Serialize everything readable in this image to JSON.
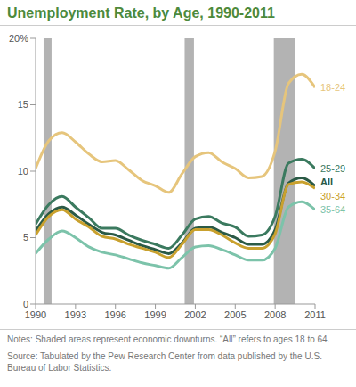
{
  "chart_data": {
    "type": "line",
    "title": "Unemployment Rate, by Age, 1990-2011",
    "x": [
      1990,
      1991,
      1992,
      1993,
      1994,
      1995,
      1996,
      1997,
      1998,
      1999,
      2000,
      2001,
      2002,
      2003,
      2004,
      2005,
      2006,
      2007,
      2008,
      2009,
      2010,
      2011
    ],
    "series": [
      {
        "name": "18-24",
        "color": "#e6c57c",
        "values": [
          10.2,
          12.3,
          12.9,
          12.2,
          11.3,
          10.7,
          10.8,
          10.1,
          9.3,
          8.9,
          8.4,
          9.8,
          11.1,
          11.4,
          10.7,
          10.2,
          9.5,
          9.6,
          11.5,
          16.6,
          17.3,
          16.3
        ]
      },
      {
        "name": "25-29",
        "color": "#3b7a5f",
        "values": [
          6.0,
          7.5,
          8.1,
          7.3,
          6.5,
          5.7,
          5.7,
          5.2,
          4.8,
          4.5,
          4.2,
          5.2,
          6.4,
          6.6,
          6.1,
          5.8,
          5.1,
          5.2,
          6.6,
          10.6,
          10.9,
          10.2
        ]
      },
      {
        "name": "All",
        "color": "#2b5a46",
        "values": [
          5.5,
          6.8,
          7.3,
          6.7,
          6.0,
          5.4,
          5.2,
          4.8,
          4.4,
          4.1,
          3.8,
          4.6,
          5.7,
          5.8,
          5.4,
          5.0,
          4.5,
          4.5,
          5.6,
          9.1,
          9.5,
          8.9
        ]
      },
      {
        "name": "30-34",
        "color": "#c9a12e",
        "values": [
          5.2,
          6.6,
          7.1,
          6.4,
          5.8,
          5.1,
          4.9,
          4.5,
          4.2,
          3.9,
          3.5,
          4.5,
          5.6,
          5.6,
          5.2,
          4.6,
          4.2,
          4.2,
          5.3,
          9.0,
          9.2,
          8.7
        ]
      },
      {
        "name": "35-64",
        "color": "#7cc3aa",
        "values": [
          3.8,
          4.9,
          5.5,
          5.0,
          4.3,
          3.9,
          3.7,
          3.4,
          3.1,
          2.9,
          2.7,
          3.5,
          4.3,
          4.4,
          4.1,
          3.7,
          3.3,
          3.3,
          4.2,
          7.3,
          7.7,
          7.1
        ]
      }
    ],
    "shaded_ranges": [
      [
        1990.6,
        1991.2
      ],
      [
        2001.2,
        2001.9
      ],
      [
        2007.9,
        2009.5
      ]
    ],
    "xlim": [
      1990,
      2011
    ],
    "xticks": [
      1990,
      1993,
      1996,
      1999,
      2002,
      2005,
      2008,
      2011
    ],
    "ylim": [
      0,
      20
    ],
    "yticks": [
      0,
      5,
      10,
      15,
      {
        "value": 20,
        "label": "20%"
      }
    ],
    "grid": false,
    "annotations": [
      "Notes: Shaded areas represent economic downturns. “All” refers to ages 18 to 64.",
      "Source: Tabulated by the Pew Research Center from data published by the U.S. Bureau of Labor Statistics."
    ]
  }
}
